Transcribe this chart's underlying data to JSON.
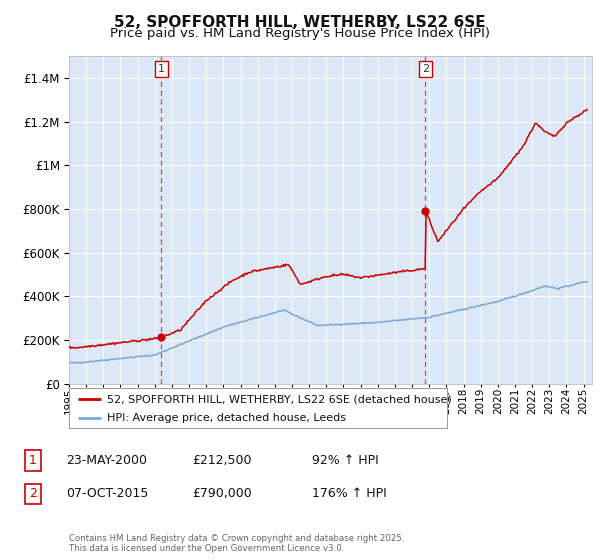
{
  "title1": "52, SPOFFORTH HILL, WETHERBY, LS22 6SE",
  "title2": "Price paid vs. HM Land Registry's House Price Index (HPI)",
  "legend_line1": "52, SPOFFORTH HILL, WETHERBY, LS22 6SE (detached house)",
  "legend_line2": "HPI: Average price, detached house, Leeds",
  "annotation1_label": "1",
  "annotation1_date": "23-MAY-2000",
  "annotation1_price": "£212,500",
  "annotation1_hpi": "92% ↑ HPI",
  "annotation2_label": "2",
  "annotation2_date": "07-OCT-2015",
  "annotation2_price": "£790,000",
  "annotation2_hpi": "176% ↑ HPI",
  "footnote": "Contains HM Land Registry data © Crown copyright and database right 2025.\nThis data is licensed under the Open Government Licence v3.0.",
  "red_color": "#cc0000",
  "blue_color": "#7aa8d2",
  "plot_bg": "#dce8f5",
  "grid_color": "#ffffff",
  "dashed_color": "#dd4444",
  "ylim_max": 1500000,
  "sale1_year": 2000.39,
  "sale1_value": 212500,
  "sale2_year": 2015.77,
  "sale2_value": 790000,
  "title_fontsize": 11,
  "subtitle_fontsize": 9.5
}
